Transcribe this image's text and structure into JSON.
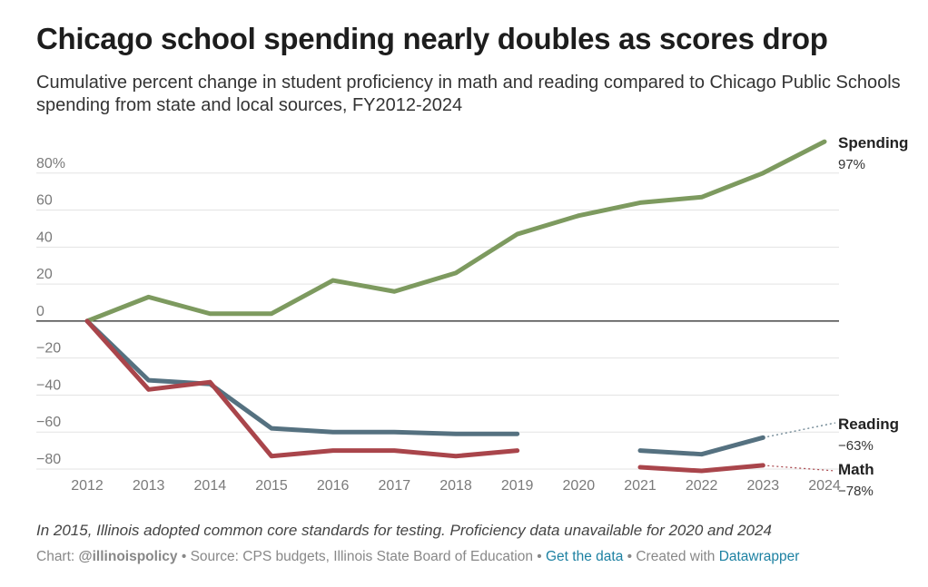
{
  "header": {
    "title": "Chicago school spending nearly doubles as scores drop",
    "subtitle": "Cumulative percent change in student proficiency in math and reading compared to Chicago Public Schools spending from state and local sources, FY2012-2024"
  },
  "note": "In 2015, Illinois adopted common core standards for testing. Proficiency data unavailable for 2020 and 2024",
  "footer": {
    "chart_prefix": "Chart: ",
    "chart_credit": "@illinoispolicy",
    "sep1": " • ",
    "source": "Source: CPS budgets, Illinois State Board of Education",
    "sep2": " • ",
    "get_data": "Get the data",
    "sep3": " • ",
    "created": "Created with ",
    "tool": "Datawrapper"
  },
  "chart_data": {
    "type": "line",
    "x": [
      2012,
      2013,
      2014,
      2015,
      2016,
      2017,
      2018,
      2019,
      2020,
      2021,
      2022,
      2023,
      2024
    ],
    "y_ticks": [
      80,
      60,
      40,
      20,
      0,
      -20,
      -40,
      -60,
      -80
    ],
    "y_tick_labels": [
      "80%",
      "60",
      "40",
      "20",
      "0",
      "−20",
      "−40",
      "−60",
      "−80"
    ],
    "ylim": [
      -80,
      100
    ],
    "grid": true,
    "series": [
      {
        "name": "Spending",
        "color": "#7d9a5f",
        "values": [
          0,
          13,
          4,
          4,
          22,
          16,
          26,
          47,
          57,
          64,
          67,
          80,
          97
        ],
        "end_label": "97%"
      },
      {
        "name": "Reading",
        "color": "#557180",
        "values": [
          0,
          -32,
          -34,
          -58,
          -60,
          -60,
          -61,
          -61,
          null,
          -70,
          -72,
          -63,
          null
        ],
        "end_label": "−63%",
        "projected_2024": -55
      },
      {
        "name": "Math",
        "color": "#a9454b",
        "values": [
          0,
          -37,
          -33,
          -73,
          -70,
          -70,
          -73,
          -70,
          null,
          -79,
          -81,
          -78,
          null
        ],
        "end_label": "−78%",
        "projected_2024": -81
      }
    ]
  }
}
